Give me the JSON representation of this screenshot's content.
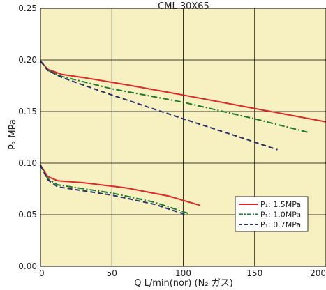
{
  "chart_data": {
    "type": "line",
    "title": "CML 30X65",
    "xlabel": "Q L/min(nor) (N₂ ガス)",
    "ylabel": "P₂ MPa",
    "xlim": [
      0,
      200
    ],
    "ylim": [
      0,
      0.25
    ],
    "x_ticks": [
      "0",
      "50",
      "100",
      "150",
      "200"
    ],
    "y_ticks": [
      "0.00",
      "0.05",
      "0.10",
      "0.15",
      "0.20",
      "0.25"
    ],
    "grid": true,
    "legend_position": "bottom-right",
    "colors": {
      "plot_background": "#f7f0c0",
      "series_1_5": "#e02828",
      "series_1_0": "#1e7a2e",
      "series_0_7": "#2a2f6e",
      "grid": "#000000"
    },
    "series": [
      {
        "name": "P₁: 1.5MPa",
        "group": "upper",
        "style": "solid",
        "x": [
          0,
          5,
          15,
          30,
          60,
          100,
          150,
          200
        ],
        "y": [
          0.199,
          0.191,
          0.186,
          0.183,
          0.176,
          0.166,
          0.153,
          0.14
        ]
      },
      {
        "name": "P₁: 1.0MPa",
        "group": "upper",
        "style": "dashdot",
        "x": [
          0,
          5,
          15,
          50,
          100,
          150,
          187
        ],
        "y": [
          0.199,
          0.19,
          0.184,
          0.172,
          0.159,
          0.143,
          0.13
        ]
      },
      {
        "name": "P₁: 0.7MPa",
        "group": "upper",
        "style": "dashed",
        "x": [
          0,
          5,
          15,
          50,
          100,
          140,
          166
        ],
        "y": [
          0.199,
          0.19,
          0.183,
          0.166,
          0.143,
          0.125,
          0.113
        ]
      },
      {
        "name": "P₁: 1.5MPa",
        "group": "lower",
        "style": "solid",
        "x": [
          0,
          5,
          12,
          30,
          60,
          90,
          112
        ],
        "y": [
          0.098,
          0.087,
          0.083,
          0.081,
          0.076,
          0.068,
          0.059
        ]
      },
      {
        "name": "P₁: 1.0MPa",
        "group": "lower",
        "style": "dashdot",
        "x": [
          0,
          5,
          12,
          50,
          80,
          104
        ],
        "y": [
          0.098,
          0.085,
          0.079,
          0.071,
          0.062,
          0.051
        ]
      },
      {
        "name": "P₁: 0.7MPa",
        "group": "lower",
        "style": "dashed",
        "x": [
          0,
          5,
          12,
          50,
          80,
          102
        ],
        "y": [
          0.098,
          0.084,
          0.077,
          0.069,
          0.06,
          0.05
        ]
      }
    ],
    "legend": [
      {
        "label": "P₁: 1.5MPa",
        "style": "solid",
        "color_key": "series_1_5"
      },
      {
        "label": "P₁: 1.0MPa",
        "style": "dashdot",
        "color_key": "series_1_0"
      },
      {
        "label": "P₁: 0.7MPa",
        "style": "dashed",
        "color_key": "series_0_7"
      }
    ]
  }
}
